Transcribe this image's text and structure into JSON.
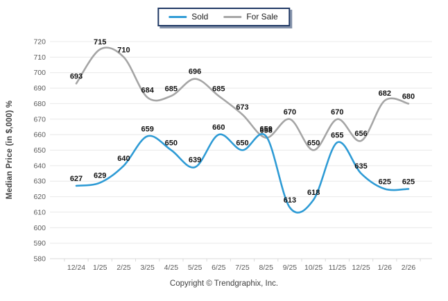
{
  "footer": {
    "copyright": "Copyright © Trendgraphix, Inc."
  },
  "axis": {
    "y_title": "Median Price (in $,000) %"
  },
  "colors": {
    "sold": "#2E9BD5",
    "for_sale": "#A5A5A5",
    "grid": "#E8E8E8",
    "axis_line": "#D9D9D9",
    "tick_text": "#595959",
    "data_label": "#111111",
    "legend_border": "#1F3864"
  },
  "chart_data": {
    "type": "line",
    "title": "",
    "xlabel": "",
    "ylabel": "Median Price (in $,000) %",
    "ylim": [
      580,
      720
    ],
    "ytick_step": 10,
    "grid": true,
    "smooth": true,
    "data_labels": true,
    "legend_position": "top-center",
    "categories": [
      "12/24",
      "1/25",
      "2/25",
      "3/25",
      "4/25",
      "5/25",
      "6/25",
      "7/25",
      "8/25",
      "9/25",
      "10/25",
      "11/25",
      "12/25",
      "1/26",
      "2/26"
    ],
    "series": [
      {
        "name": "Sold",
        "color": "#2E9BD5",
        "values": [
          627,
          629,
          640,
          659,
          650,
          639,
          660,
          650,
          659,
          613,
          618,
          655,
          635,
          625,
          625
        ]
      },
      {
        "name": "For Sale",
        "color": "#A5A5A5",
        "values": [
          693,
          715,
          710,
          684,
          685,
          696,
          685,
          673,
          658,
          670,
          650,
          670,
          656,
          682,
          680
        ]
      }
    ]
  }
}
